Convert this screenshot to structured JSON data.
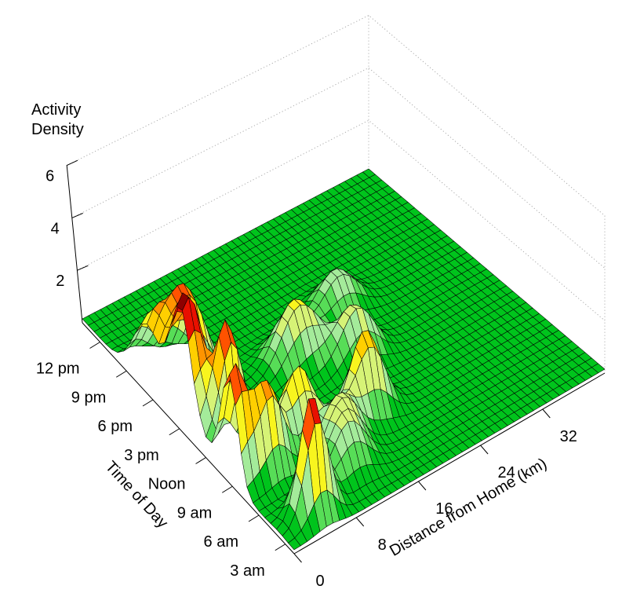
{
  "chart_data": {
    "type": "surface3d",
    "description": "3D wireframe surface of activity density by time of day and distance from home",
    "x_axis": {
      "label": "Distance from Home (km)",
      "min": 0,
      "max": 40,
      "ticks": [
        {
          "value": 0,
          "label": "0"
        },
        {
          "value": 8,
          "label": "8"
        },
        {
          "value": 16,
          "label": "16"
        },
        {
          "value": 24,
          "label": "24"
        },
        {
          "value": 32,
          "label": "32"
        }
      ]
    },
    "y_axis": {
      "label": "Time of Day",
      "min": 2,
      "max": 26,
      "ticks": [
        {
          "value": 3,
          "label": "3 am"
        },
        {
          "value": 6,
          "label": "6 am"
        },
        {
          "value": 9,
          "label": "9 am"
        },
        {
          "value": 12,
          "label": "Noon"
        },
        {
          "value": 15,
          "label": "3 pm"
        },
        {
          "value": 18,
          "label": "6 pm"
        },
        {
          "value": 21,
          "label": "9 pm"
        },
        {
          "value": 24,
          "label": "12 pm"
        }
      ]
    },
    "z_axis": {
      "title": "Activity\nDensity",
      "min": 0,
      "max": 6,
      "ticks": [
        {
          "value": 2,
          "label": "2"
        },
        {
          "value": 4,
          "label": "4"
        },
        {
          "value": 6,
          "label": "6"
        }
      ]
    },
    "base_level": 0.15,
    "peaks": [
      {
        "time": 14.9,
        "distance": 0.8,
        "height": 4.9,
        "sigma_t": 1.25,
        "sigma_d": 2.0
      },
      {
        "time": 17.8,
        "distance": 4.3,
        "height": 3.4,
        "sigma_t": 1.1,
        "sigma_d": 2.1
      },
      {
        "time": 18.9,
        "distance": 0.6,
        "height": 2.3,
        "sigma_t": 1.4,
        "sigma_d": 1.8
      },
      {
        "time": 12.4,
        "distance": 3.5,
        "height": 4.2,
        "sigma_t": 0.7,
        "sigma_d": 1.5
      },
      {
        "time": 9.4,
        "distance": 0.5,
        "height": 4.15,
        "sigma_t": 0.95,
        "sigma_d": 1.5
      },
      {
        "time": 8.4,
        "distance": 4.0,
        "height": 3.3,
        "sigma_t": 0.8,
        "sigma_d": 1.6
      },
      {
        "time": 9.4,
        "distance": 9.0,
        "height": 2.8,
        "sigma_t": 0.85,
        "sigma_d": 1.9
      },
      {
        "time": 3.8,
        "distance": 4.5,
        "height": 4.6,
        "sigma_t": 0.7,
        "sigma_d": 1.5
      },
      {
        "time": 5.3,
        "distance": 10.8,
        "height": 1.6,
        "sigma_t": 0.9,
        "sigma_d": 2.0
      },
      {
        "time": 7.1,
        "distance": 12.0,
        "height": 1.9,
        "sigma_t": 0.9,
        "sigma_d": 2.1
      },
      {
        "time": 15.0,
        "distance": 15.7,
        "height": 2.3,
        "sigma_t": 1.1,
        "sigma_d": 2.4
      },
      {
        "time": 8.5,
        "distance": 17.0,
        "height": 3.2,
        "sigma_t": 0.85,
        "sigma_d": 1.9
      },
      {
        "time": 12.9,
        "distance": 21.0,
        "height": 2.0,
        "sigma_t": 0.95,
        "sigma_d": 2.1
      },
      {
        "time": 17.0,
        "distance": 23.7,
        "height": 1.5,
        "sigma_t": 1.0,
        "sigma_d": 2.3
      }
    ],
    "color_scale": [
      {
        "upto": 0.7,
        "color": "#00c41c"
      },
      {
        "upto": 1.2,
        "color": "#57dd57"
      },
      {
        "upto": 1.7,
        "color": "#a4eb9a"
      },
      {
        "upto": 2.2,
        "color": "#d6f376"
      },
      {
        "upto": 2.7,
        "color": "#f8f51e"
      },
      {
        "upto": 3.2,
        "color": "#ffcf00"
      },
      {
        "upto": 3.6,
        "color": "#ff9400"
      },
      {
        "upto": 4.0,
        "color": "#ff5200"
      },
      {
        "upto": 4.4,
        "color": "#e81000"
      },
      {
        "upto": 99,
        "color": "#8e0000"
      }
    ],
    "grid": {
      "time_cells": 36,
      "distance_cells": 48
    },
    "wireframe_color": "#000000",
    "axis_color": "#000000",
    "grid_line_color": "#ababab",
    "background_color": "#ffffff"
  }
}
